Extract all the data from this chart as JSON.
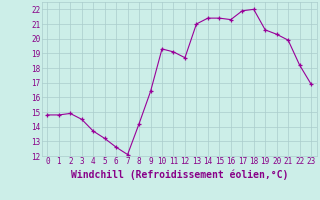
{
  "x": [
    0,
    1,
    2,
    3,
    4,
    5,
    6,
    7,
    8,
    9,
    10,
    11,
    12,
    13,
    14,
    15,
    16,
    17,
    18,
    19,
    20,
    21,
    22,
    23
  ],
  "y": [
    14.8,
    14.8,
    14.9,
    14.5,
    13.7,
    13.2,
    12.6,
    12.1,
    14.2,
    16.4,
    19.3,
    19.1,
    18.7,
    21.0,
    21.4,
    21.4,
    21.3,
    21.9,
    22.0,
    20.6,
    20.3,
    19.9,
    18.2,
    16.9
  ],
  "line_color": "#990099",
  "marker": "+",
  "marker_color": "#990099",
  "bg_color": "#cceee8",
  "grid_color": "#aacccc",
  "xlabel": "Windchill (Refroidissement éolien,°C)",
  "xlabel_fontsize": 7,
  "tick_label_color": "#880088",
  "xlabel_color": "#880088",
  "ylim": [
    12,
    22.5
  ],
  "xlim": [
    -0.5,
    23.5
  ],
  "yticks": [
    12,
    13,
    14,
    15,
    16,
    17,
    18,
    19,
    20,
    21,
    22
  ],
  "xticks": [
    0,
    1,
    2,
    3,
    4,
    5,
    6,
    7,
    8,
    9,
    10,
    11,
    12,
    13,
    14,
    15,
    16,
    17,
    18,
    19,
    20,
    21,
    22,
    23
  ],
  "spine_color": "#aacccc"
}
